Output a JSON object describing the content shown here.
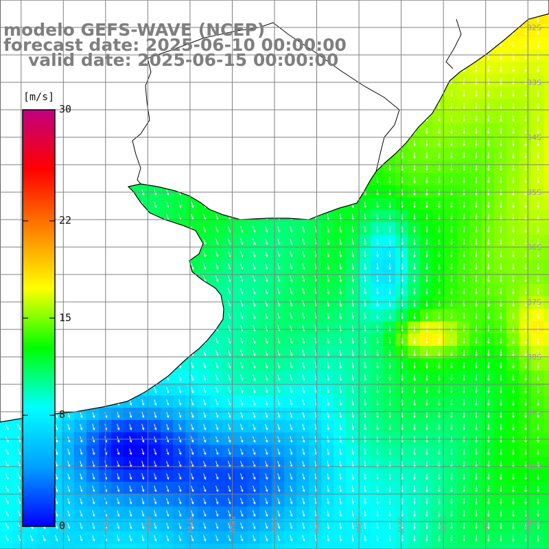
{
  "title": {
    "model": "modelo GEFS-WAVE (NCEP)",
    "forecast": "forecast date: 2025-06-10 00:00:00",
    "valid": "valid date: 2025-06-15 00:00:00"
  },
  "colorbar": {
    "unit": "[m/s]",
    "min": 0,
    "max": 30,
    "ticks": [
      {
        "value": 30,
        "label": "30"
      },
      {
        "value": 22,
        "label": "22"
      },
      {
        "value": 15,
        "label": "15"
      },
      {
        "value": 8,
        "label": "8"
      },
      {
        "value": 0,
        "label": "0"
      }
    ],
    "colors": [
      "#0000ff",
      "#00a0ff",
      "#00ffff",
      "#00ff00",
      "#ffff00",
      "#ff8000",
      "#ff0000",
      "#c00080"
    ]
  },
  "map": {
    "lon_range": [
      -61.5,
      -48.5
    ],
    "lat_range": [
      -41.5,
      -31.5
    ],
    "lat_labels": [
      "32S",
      "33S",
      "34S",
      "35S",
      "36S",
      "37S",
      "38S",
      "39S",
      "40S",
      "41S"
    ],
    "lon_labels": [
      "61W",
      "60W",
      "59W",
      "58W",
      "57W",
      "56W",
      "55W",
      "54W",
      "53W",
      "52W",
      "51W",
      "50W",
      "49W"
    ],
    "grid_color": "#7f7f7f",
    "land_color": "#ffffff",
    "coast_color": "#000000",
    "arrow_color": "#ffffff",
    "label_color": "#9a9a9a"
  }
}
